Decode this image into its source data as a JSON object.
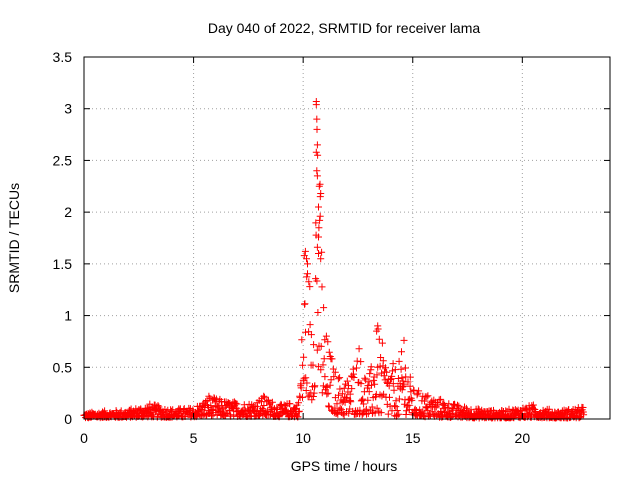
{
  "chart_data": {
    "type": "scatter",
    "title": "Day 040 of 2022, SRMTID for receiver lama",
    "xlabel": "GPS time / hours",
    "ylabel": "SRMTID / TECUs",
    "xlim": [
      0,
      24
    ],
    "ylim": [
      0,
      3.5
    ],
    "xticks": [
      0,
      5,
      10,
      15,
      20
    ],
    "yticks": [
      0,
      0.5,
      1,
      1.5,
      2,
      2.5,
      3,
      3.5
    ],
    "xtick_labels": [
      "0",
      "5",
      "10",
      "15",
      "20"
    ],
    "ytick_labels": [
      "0",
      "0.5",
      "1",
      "1.5",
      "2",
      "2.5",
      "3",
      "3.5"
    ],
    "grid": true,
    "marker": "+",
    "color": "#ff0000",
    "series": [
      {
        "name": "SRMTID",
        "envelope": [
          {
            "x": 0.0,
            "base": 0.02,
            "peak": 0.06
          },
          {
            "x": 1.0,
            "base": 0.03,
            "peak": 0.08
          },
          {
            "x": 2.0,
            "base": 0.03,
            "peak": 0.09
          },
          {
            "x": 3.0,
            "base": 0.04,
            "peak": 0.15
          },
          {
            "x": 4.0,
            "base": 0.03,
            "peak": 0.1
          },
          {
            "x": 5.0,
            "base": 0.04,
            "peak": 0.11
          },
          {
            "x": 5.7,
            "base": 0.06,
            "peak": 0.22
          },
          {
            "x": 6.5,
            "base": 0.05,
            "peak": 0.18
          },
          {
            "x": 7.5,
            "base": 0.05,
            "peak": 0.16
          },
          {
            "x": 8.2,
            "base": 0.06,
            "peak": 0.22
          },
          {
            "x": 9.0,
            "base": 0.04,
            "peak": 0.14
          },
          {
            "x": 9.8,
            "base": 0.04,
            "peak": 0.18
          },
          {
            "x": 10.1,
            "base": 0.5,
            "peak": 1.62
          },
          {
            "x": 10.4,
            "base": 0.3,
            "peak": 1.4
          },
          {
            "x": 10.6,
            "base": 0.7,
            "peak": 3.07
          },
          {
            "x": 10.8,
            "base": 0.4,
            "peak": 2.2
          },
          {
            "x": 11.0,
            "base": 0.2,
            "peak": 0.9
          },
          {
            "x": 11.5,
            "base": 0.1,
            "peak": 0.45
          },
          {
            "x": 12.0,
            "base": 0.05,
            "peak": 0.4
          },
          {
            "x": 12.5,
            "base": 0.1,
            "peak": 0.68
          },
          {
            "x": 13.0,
            "base": 0.05,
            "peak": 0.4
          },
          {
            "x": 13.4,
            "base": 0.1,
            "peak": 0.9
          },
          {
            "x": 13.8,
            "base": 0.05,
            "peak": 0.6
          },
          {
            "x": 14.3,
            "base": 0.05,
            "peak": 0.5
          },
          {
            "x": 14.6,
            "base": 0.1,
            "peak": 0.76
          },
          {
            "x": 15.0,
            "base": 0.05,
            "peak": 0.3
          },
          {
            "x": 16.0,
            "base": 0.03,
            "peak": 0.22
          },
          {
            "x": 17.0,
            "base": 0.03,
            "peak": 0.14
          },
          {
            "x": 18.0,
            "base": 0.02,
            "peak": 0.1
          },
          {
            "x": 19.0,
            "base": 0.02,
            "peak": 0.08
          },
          {
            "x": 20.5,
            "base": 0.03,
            "peak": 0.14
          },
          {
            "x": 21.5,
            "base": 0.02,
            "peak": 0.08
          },
          {
            "x": 22.8,
            "base": 0.02,
            "peak": 0.12
          }
        ],
        "x_start": 0.0,
        "x_end": 22.8,
        "point_spacing_hours": 0.02,
        "notable_points": [
          {
            "x": 10.6,
            "y": 3.07
          },
          {
            "x": 10.6,
            "y": 3.04
          },
          {
            "x": 10.62,
            "y": 2.9
          },
          {
            "x": 10.63,
            "y": 2.8
          },
          {
            "x": 10.65,
            "y": 2.65
          },
          {
            "x": 10.6,
            "y": 2.58
          },
          {
            "x": 10.66,
            "y": 2.55
          },
          {
            "x": 10.62,
            "y": 2.4
          },
          {
            "x": 10.65,
            "y": 2.35
          },
          {
            "x": 10.8,
            "y": 2.18
          },
          {
            "x": 10.78,
            "y": 2.15
          },
          {
            "x": 10.7,
            "y": 2.05
          },
          {
            "x": 10.75,
            "y": 1.92
          },
          {
            "x": 10.72,
            "y": 1.85
          },
          {
            "x": 10.7,
            "y": 1.76
          },
          {
            "x": 10.1,
            "y": 1.62
          },
          {
            "x": 10.15,
            "y": 1.55
          },
          {
            "x": 10.2,
            "y": 1.5
          },
          {
            "x": 10.05,
            "y": 1.58
          },
          {
            "x": 10.7,
            "y": 1.6
          },
          {
            "x": 10.8,
            "y": 1.55
          },
          {
            "x": 13.4,
            "y": 0.9
          },
          {
            "x": 13.35,
            "y": 0.85
          },
          {
            "x": 14.6,
            "y": 0.76
          },
          {
            "x": 12.55,
            "y": 0.68
          },
          {
            "x": 5.7,
            "y": 0.22
          },
          {
            "x": 8.2,
            "y": 0.22
          }
        ]
      }
    ]
  }
}
